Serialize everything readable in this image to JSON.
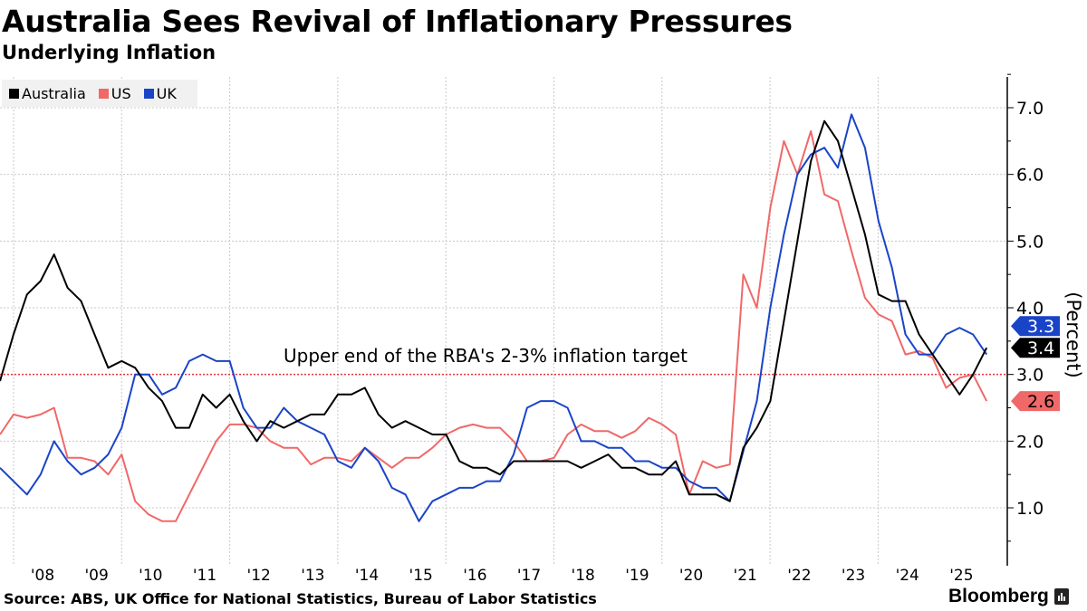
{
  "header": {
    "title": "Australia Sees Revival of Inflationary Pressures",
    "subtitle": "Underlying Inflation"
  },
  "footer": {
    "source": "Source: ABS, UK Office for National Statistics, Bureau of Labor Statistics",
    "brand": "Bloomberg"
  },
  "chart_data": {
    "type": "line",
    "title": "Underlying Inflation",
    "ylabel": "(Percent)",
    "xlabel": "",
    "ylim": [
      0,
      7.5
    ],
    "yticks": [
      "1.0",
      "2.0",
      "3.0",
      "4.0",
      "5.0",
      "6.0",
      "7.0"
    ],
    "ytick_values": [
      1,
      2,
      3,
      4,
      5,
      6,
      7
    ],
    "xticks": [
      "'08",
      "'09",
      "'10",
      "'11",
      "'12",
      "'13",
      "'14",
      "'15",
      "'16",
      "'17",
      "'18",
      "'19",
      "'20",
      "'21",
      "'22",
      "'23",
      "'24",
      "'25"
    ],
    "x_start": "2007 Q3",
    "x_frequency": "quarterly",
    "grid": true,
    "legend_position": "top-left",
    "reference_line": {
      "value": 3.0,
      "label": "Upper end of the RBA's 2-3% inflation target",
      "color": "#e8323c"
    },
    "series": [
      {
        "name": "Australia",
        "color": "#000000",
        "last_label": "3.4",
        "values": [
          2.9,
          3.6,
          4.2,
          4.4,
          4.8,
          4.3,
          4.1,
          3.6,
          3.1,
          3.2,
          3.1,
          2.8,
          2.6,
          2.2,
          2.2,
          2.7,
          2.5,
          2.7,
          2.3,
          2.0,
          2.3,
          2.2,
          2.3,
          2.4,
          2.4,
          2.7,
          2.7,
          2.8,
          2.4,
          2.2,
          2.3,
          2.2,
          2.1,
          2.1,
          1.7,
          1.6,
          1.6,
          1.5,
          1.7,
          1.7,
          1.7,
          1.7,
          1.7,
          1.6,
          1.7,
          1.8,
          1.6,
          1.6,
          1.5,
          1.5,
          1.7,
          1.2,
          1.2,
          1.2,
          1.1,
          1.9,
          2.2,
          2.6,
          3.8,
          5.0,
          6.2,
          6.8,
          6.5,
          5.8,
          5.1,
          4.2,
          4.1,
          4.1,
          3.6,
          3.3,
          3.0,
          2.7,
          3.0,
          3.4
        ]
      },
      {
        "name": "US",
        "color": "#f06868",
        "last_label": "2.6",
        "values": [
          2.1,
          2.4,
          2.35,
          2.4,
          2.5,
          1.75,
          1.75,
          1.7,
          1.5,
          1.8,
          1.1,
          0.9,
          0.8,
          0.8,
          1.2,
          1.6,
          2.0,
          2.25,
          2.25,
          2.2,
          2.0,
          1.9,
          1.9,
          1.65,
          1.75,
          1.75,
          1.7,
          1.9,
          1.75,
          1.6,
          1.75,
          1.75,
          1.9,
          2.1,
          2.2,
          2.25,
          2.2,
          2.2,
          2.0,
          1.7,
          1.7,
          1.75,
          2.1,
          2.25,
          2.15,
          2.15,
          2.05,
          2.15,
          2.35,
          2.25,
          2.1,
          1.2,
          1.7,
          1.6,
          1.65,
          4.5,
          4.0,
          5.5,
          6.5,
          6.0,
          6.65,
          5.7,
          5.6,
          4.85,
          4.15,
          3.9,
          3.8,
          3.3,
          3.35,
          3.25,
          2.8,
          2.95,
          3.0,
          2.6
        ]
      },
      {
        "name": "UK",
        "color": "#1a44c8",
        "last_label": "3.3",
        "values": [
          1.6,
          1.4,
          1.2,
          1.5,
          2.0,
          1.7,
          1.5,
          1.6,
          1.8,
          2.2,
          3.0,
          3.0,
          2.7,
          2.8,
          3.2,
          3.3,
          3.2,
          3.2,
          2.5,
          2.2,
          2.2,
          2.5,
          2.3,
          2.2,
          2.1,
          1.7,
          1.6,
          1.9,
          1.7,
          1.3,
          1.2,
          0.8,
          1.1,
          1.2,
          1.3,
          1.3,
          1.4,
          1.4,
          1.8,
          2.5,
          2.6,
          2.6,
          2.5,
          2.0,
          2.0,
          1.9,
          1.9,
          1.7,
          1.7,
          1.6,
          1.6,
          1.4,
          1.3,
          1.3,
          1.1,
          1.85,
          2.6,
          4.0,
          5.1,
          6.0,
          6.3,
          6.4,
          6.1,
          6.9,
          6.4,
          5.3,
          4.6,
          3.6,
          3.3,
          3.3,
          3.6,
          3.7,
          3.6,
          3.3
        ]
      }
    ]
  }
}
